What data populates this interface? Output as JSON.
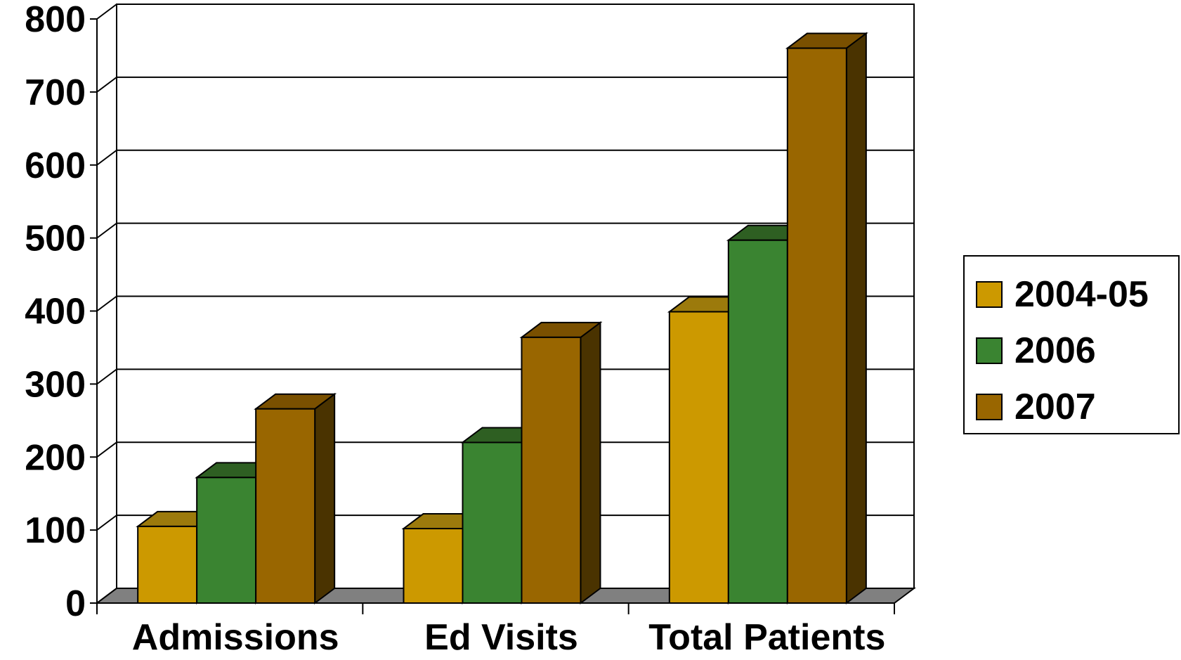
{
  "chart_data": {
    "type": "bar",
    "categories": [
      "Admissions",
      "Ed Visits",
      "Total Patients"
    ],
    "series": [
      {
        "name": "2004-05",
        "values": [
          105,
          102,
          399
        ],
        "color": "#CC9900",
        "top_color": "#9C7A0C",
        "side_color": "#7A5F00"
      },
      {
        "name": "2006",
        "values": [
          172,
          220,
          497
        ],
        "color": "#3A8431",
        "top_color": "#2E5F22",
        "side_color": "#1F4418"
      },
      {
        "name": "2007",
        "values": [
          266,
          364,
          760
        ],
        "color": "#996600",
        "top_color": "#7A5000",
        "side_color": "#4A3300"
      }
    ],
    "yticks": [
      "0",
      "100",
      "200",
      "300",
      "400",
      "500",
      "600",
      "700",
      "800"
    ],
    "ylim": [
      0,
      800
    ],
    "grid": true,
    "legend_position": "right",
    "title": "",
    "xlabel": "",
    "ylabel": ""
  }
}
